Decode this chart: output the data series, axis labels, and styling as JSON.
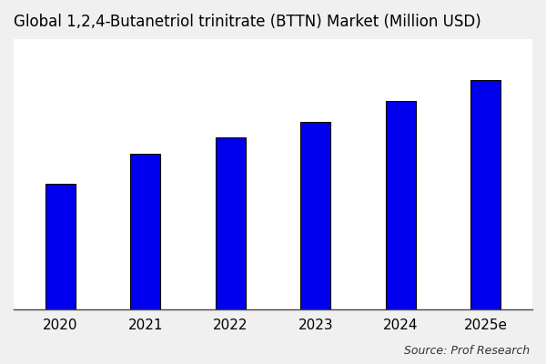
{
  "title": "Global 1,2,4-Butanetriol trinitrate (BTTN) Market (Million USD)",
  "categories": [
    "2020",
    "2021",
    "2022",
    "2023",
    "2024",
    "2025e"
  ],
  "values": [
    55,
    68,
    75,
    82,
    91,
    100
  ],
  "bar_color": "#0000EE",
  "bar_edge_color": "#000000",
  "bar_edge_width": 0.8,
  "plot_bg_color": "#ffffff",
  "fig_bg_color": "#f0f0f0",
  "title_fontsize": 12,
  "tick_fontsize": 11,
  "source_text": "Source: Prof Research",
  "ylim": [
    0,
    118
  ],
  "bar_width": 0.35,
  "figsize": [
    6.0,
    4.0
  ],
  "dpi": 100
}
